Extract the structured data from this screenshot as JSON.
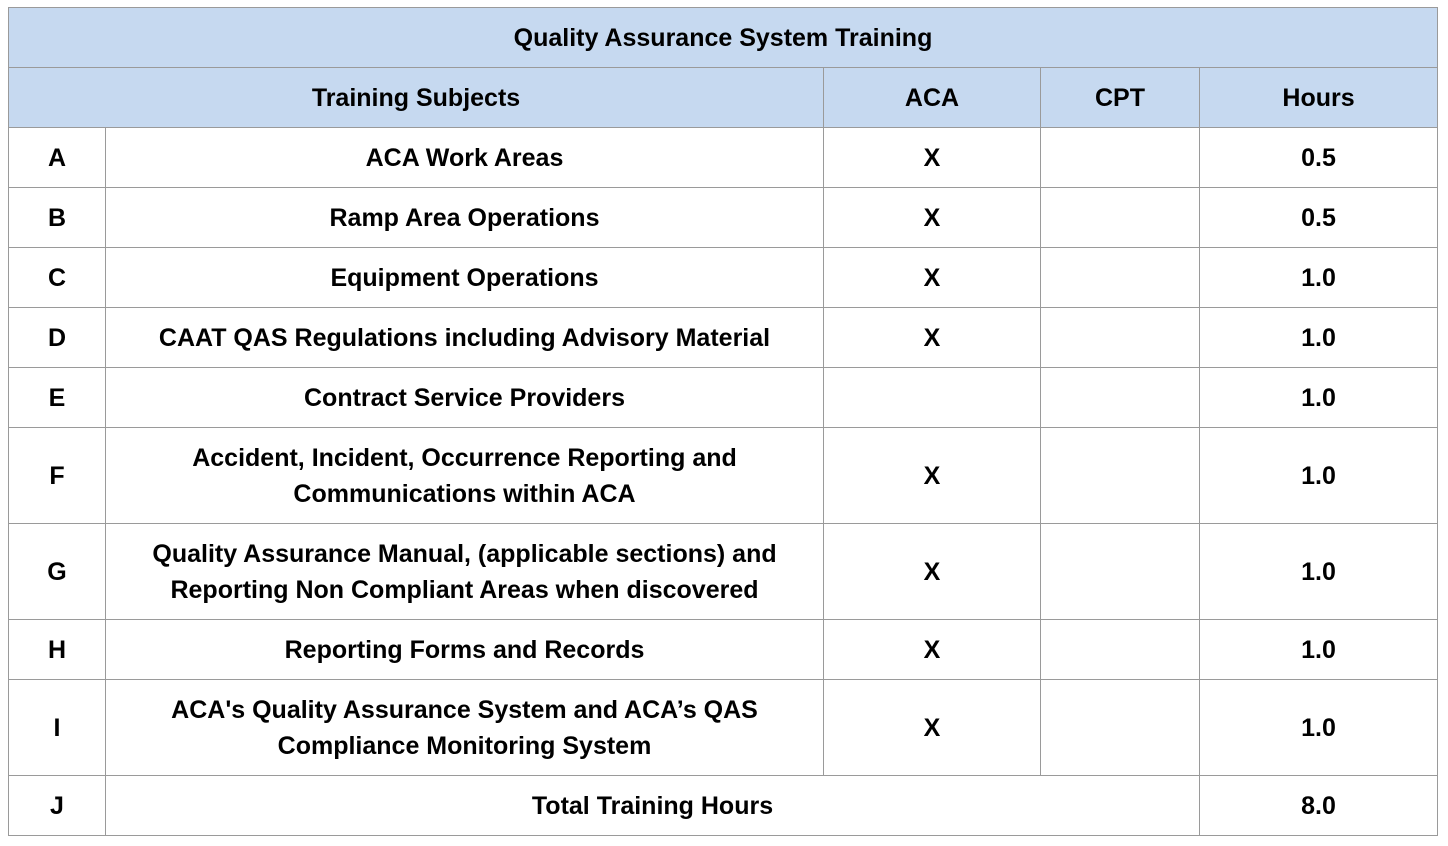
{
  "title": "Quality Assurance System Training",
  "headers": {
    "subjects": "Training Subjects",
    "aca": "ACA",
    "cpt": "CPT",
    "hours": "Hours"
  },
  "rows": [
    {
      "letter": "A",
      "subject_lines": [
        "ACA Work Areas"
      ],
      "aca": "X",
      "cpt": "",
      "hours": "0.5"
    },
    {
      "letter": "B",
      "subject_lines": [
        "Ramp Area Operations"
      ],
      "aca": "X",
      "cpt": "",
      "hours": "0.5"
    },
    {
      "letter": "C",
      "subject_lines": [
        "Equipment Operations"
      ],
      "aca": "X",
      "cpt": "",
      "hours": "1.0"
    },
    {
      "letter": "D",
      "subject_lines": [
        "CAAT QAS Regulations including Advisory Material"
      ],
      "aca": "X",
      "cpt": "",
      "hours": "1.0"
    },
    {
      "letter": "E",
      "subject_lines": [
        "Contract Service Providers"
      ],
      "aca": "",
      "cpt": "",
      "hours": "1.0"
    },
    {
      "letter": "F",
      "subject_lines": [
        "Accident, Incident, Occurrence Reporting and",
        "Communications within ACA"
      ],
      "aca": "X",
      "cpt": "",
      "hours": "1.0"
    },
    {
      "letter": "G",
      "subject_lines": [
        "Quality Assurance Manual, (applicable sections) and",
        "Reporting Non Compliant Areas when discovered"
      ],
      "aca": "X",
      "cpt": "",
      "hours": "1.0"
    },
    {
      "letter": "H",
      "subject_lines": [
        "Reporting Forms and Records"
      ],
      "aca": "X",
      "cpt": "",
      "hours": "1.0"
    },
    {
      "letter": "I",
      "subject_lines": [
        "ACA's Quality Assurance System and ACA’s QAS",
        "Compliance Monitoring System"
      ],
      "aca": "X",
      "cpt": "",
      "hours": "1.0"
    }
  ],
  "total": {
    "letter": "J",
    "label": "Total Training Hours",
    "hours": "8.0"
  },
  "colors": {
    "header_background": "#c6d9f0",
    "border": "#9a9a9a"
  }
}
